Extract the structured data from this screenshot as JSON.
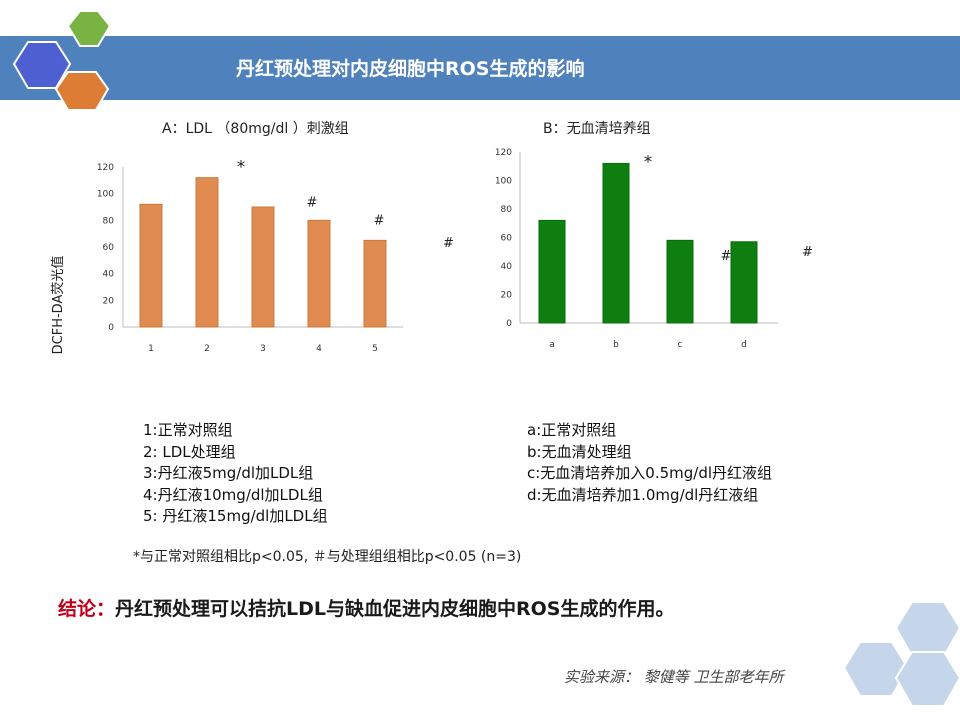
{
  "slide": {
    "title": "丹红预处理对内皮细胞中ROS生成的影响"
  },
  "colors": {
    "header": "#4f81bd",
    "hex_blue": "#4d5fd1",
    "hex_green": "#78b344",
    "hex_orange": "#dd7c34",
    "bar_orange": "#e08b4f",
    "bar_green": "#0e7e10",
    "conclusion_label": "#c0001b"
  },
  "icons": {
    "logo": "hexagon-cluster-icon",
    "corner": "hexagon-pattern-icon"
  },
  "chart_data": [
    {
      "type": "bar",
      "title": "A：LDL （80mg/dl ）刺激组",
      "ylabel": "DCFH-DA荧光值",
      "categories": [
        "1",
        "2",
        "3",
        "4",
        "5"
      ],
      "values": [
        92,
        112,
        90,
        80,
        65
      ],
      "ylim": [
        0,
        120
      ],
      "yticks": [
        "0",
        "20",
        "40",
        "60",
        "80",
        "100",
        "120"
      ],
      "annotations": [
        {
          "category": "2",
          "text": "*"
        },
        {
          "category": "4",
          "text": "#"
        },
        {
          "category": "5",
          "text": "#"
        }
      ],
      "free_marks": [
        "#"
      ],
      "grid": false
    },
    {
      "type": "bar",
      "title": "B：无血清培养组",
      "ylabel": "",
      "categories": [
        "a",
        "b",
        "c",
        "d"
      ],
      "values": [
        72,
        112,
        58,
        57
      ],
      "ylim": [
        0,
        120
      ],
      "yticks": [
        "0",
        "20",
        "40",
        "60",
        "80",
        "100",
        "120"
      ],
      "annotations": [
        {
          "category": "b",
          "text": "*"
        },
        {
          "category": "d",
          "text": "#"
        }
      ],
      "free_marks": [
        "#"
      ],
      "grid": false
    }
  ],
  "legend_left": [
    "1:正常对照组",
    "2: LDL处理组",
    "3:丹红液5mg/dl加LDL组",
    "4:丹红液10mg/dl加LDL组",
    "5: 丹红液15mg/dl加LDL组"
  ],
  "legend_right": [
    "a:正常对照组",
    "b:无血清处理组",
    "c:无血清培养加入0.5mg/dl丹红液组",
    "d:无血清培养加1.0mg/dl丹红液组"
  ],
  "note": "*与正常对照组相比p<0.05, ＃与处理组组相比p<0.05 (n=3)",
  "conclusion": {
    "label": "结论：",
    "text": "丹红预处理可以拮抗LDL与缺血促进内皮细胞中ROS生成的作用。"
  },
  "source": "实验来源： 黎健等 卫生部老年所"
}
